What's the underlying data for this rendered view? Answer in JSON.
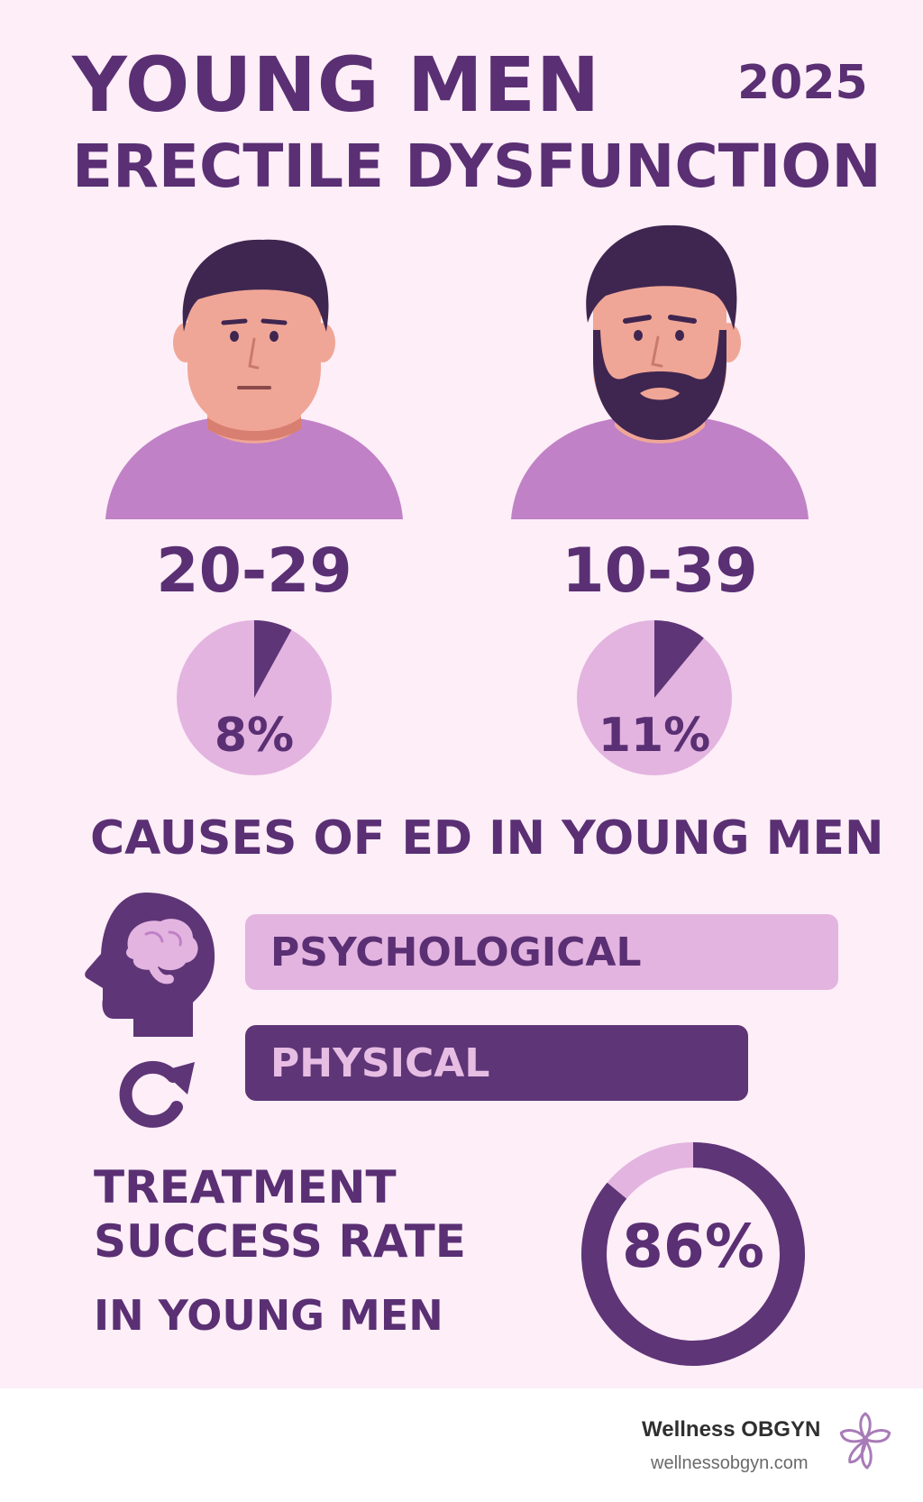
{
  "header": {
    "title_line1": "YOUNG MEN",
    "title_line2": "ERECTILE DYSFUNCTION",
    "year": "2025"
  },
  "groups": [
    {
      "age_range": "20-29",
      "percent": 8,
      "percent_label": "8%",
      "avatar": "man-clean-shaven"
    },
    {
      "age_range": "10-39",
      "percent": 11,
      "percent_label": "11%",
      "avatar": "man-bearded"
    }
  ],
  "causes": {
    "title": "CAUSES OF ED IN YOUNG MEN",
    "items": [
      {
        "label": "PSYCHOLOGICAL",
        "icon": "head-brain-icon"
      },
      {
        "label": "PHYSICAL",
        "icon": "cycle-arrow-icon"
      }
    ]
  },
  "treatment": {
    "line1": "TREATMENT",
    "line2": "SUCCESS RATE",
    "line3": "IN YOUNG MEN",
    "rate": 86,
    "rate_label": "86%"
  },
  "footer": {
    "brand": "Wellness OBGYN",
    "url": "wellnessobgyn.com",
    "logo_icon": "flower-icon"
  },
  "colors": {
    "background": "#fdeef8",
    "primary_purple": "#5e3576",
    "light_purple": "#e3b4e0",
    "skin": "#f0a696",
    "shirt": "#c081c6"
  }
}
